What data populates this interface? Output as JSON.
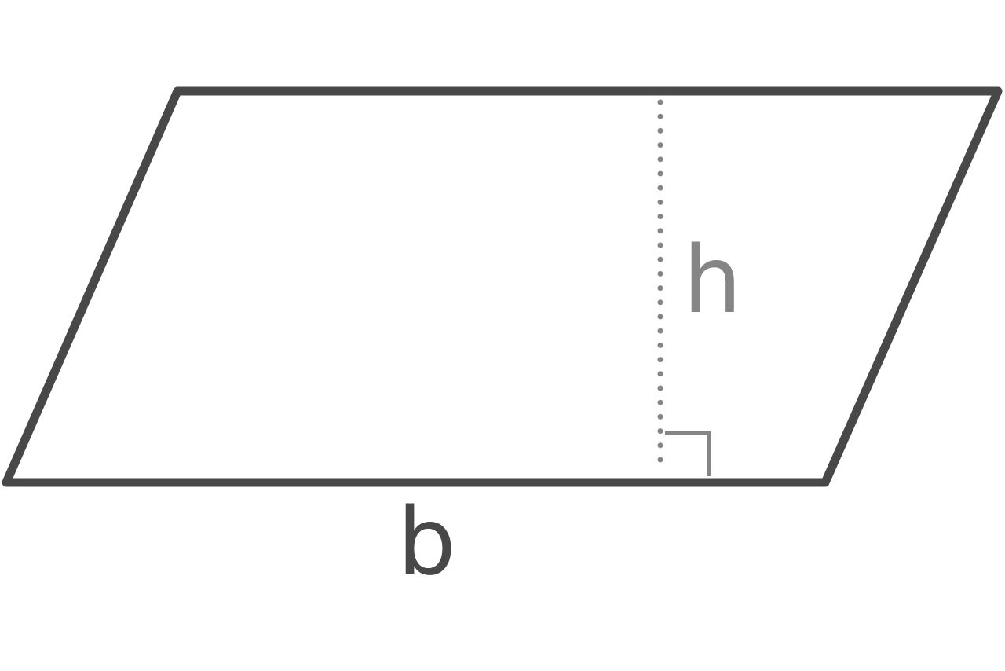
{
  "diagram": {
    "labels": {
      "base": "b",
      "height": "h"
    },
    "colors": {
      "outline": "#484848",
      "height_line": "#858585",
      "right_angle_marker": "#858585",
      "base_label": "#484848",
      "height_label": "#858585",
      "background": "#ffffff"
    }
  }
}
